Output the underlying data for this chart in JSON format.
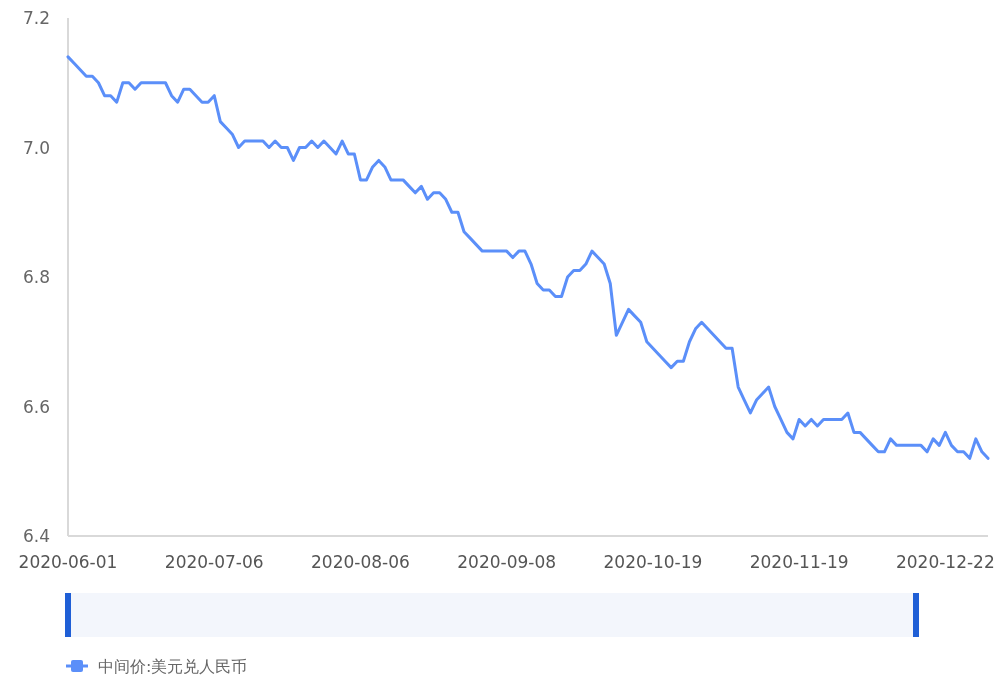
{
  "chart_data": {
    "type": "line",
    "categories": [
      "2020-06-01",
      null,
      null,
      null,
      null,
      null,
      null,
      null,
      null,
      null,
      null,
      null,
      null,
      null,
      null,
      null,
      null,
      null,
      null,
      null,
      null,
      null,
      null,
      null,
      "2020-07-06",
      null,
      null,
      null,
      null,
      null,
      null,
      null,
      null,
      null,
      null,
      null,
      null,
      null,
      null,
      null,
      null,
      null,
      null,
      null,
      null,
      null,
      null,
      null,
      "2020-08-06",
      null,
      null,
      null,
      null,
      null,
      null,
      null,
      null,
      null,
      null,
      null,
      null,
      null,
      null,
      null,
      null,
      null,
      null,
      null,
      null,
      null,
      null,
      null,
      "2020-09-08",
      null,
      null,
      null,
      null,
      null,
      null,
      null,
      null,
      null,
      null,
      null,
      null,
      null,
      null,
      null,
      null,
      null,
      null,
      null,
      null,
      null,
      null,
      null,
      "2020-10-19",
      null,
      null,
      null,
      null,
      null,
      null,
      null,
      null,
      null,
      null,
      null,
      null,
      null,
      null,
      null,
      null,
      null,
      null,
      null,
      null,
      null,
      null,
      null,
      "2020-11-19",
      null,
      null,
      null,
      null,
      null,
      null,
      null,
      null,
      null,
      null,
      null,
      null,
      null,
      null,
      null,
      null,
      null,
      null,
      null,
      null,
      null,
      null,
      null,
      "2020-12-22",
      null,
      null,
      null,
      null,
      null,
      null,
      null
    ],
    "series": [
      {
        "name": "中间价:美元兑人民币",
        "color": "#5b8ff9",
        "values": [
          7.14,
          7.13,
          7.12,
          7.11,
          7.11,
          7.1,
          7.08,
          7.08,
          7.07,
          7.1,
          7.1,
          7.09,
          7.1,
          7.1,
          7.1,
          7.1,
          7.1,
          7.08,
          7.07,
          7.09,
          7.09,
          7.08,
          7.07,
          7.07,
          7.08,
          7.04,
          7.03,
          7.02,
          7.0,
          7.01,
          7.01,
          7.01,
          7.01,
          7.0,
          7.01,
          7.0,
          7.0,
          6.98,
          7.0,
          7.0,
          7.01,
          7.0,
          7.01,
          7.0,
          6.99,
          7.01,
          6.99,
          6.99,
          6.95,
          6.95,
          6.97,
          6.98,
          6.97,
          6.95,
          6.95,
          6.95,
          6.94,
          6.93,
          6.94,
          6.92,
          6.93,
          6.93,
          6.92,
          6.9,
          6.9,
          6.87,
          6.86,
          6.85,
          6.84,
          6.84,
          6.84,
          6.84,
          6.84,
          6.83,
          6.84,
          6.84,
          6.82,
          6.79,
          6.78,
          6.78,
          6.77,
          6.77,
          6.8,
          6.81,
          6.81,
          6.82,
          6.84,
          6.83,
          6.82,
          6.79,
          6.71,
          6.73,
          6.75,
          6.74,
          6.73,
          6.7,
          6.69,
          6.68,
          6.67,
          6.66,
          6.67,
          6.67,
          6.7,
          6.72,
          6.73,
          6.72,
          6.71,
          6.7,
          6.69,
          6.69,
          6.63,
          6.61,
          6.59,
          6.61,
          6.62,
          6.63,
          6.6,
          6.58,
          6.56,
          6.55,
          6.58,
          6.57,
          6.58,
          6.57,
          6.58,
          6.58,
          6.58,
          6.58,
          6.59,
          6.56,
          6.56,
          6.55,
          6.54,
          6.53,
          6.53,
          6.55,
          6.54,
          6.54,
          6.54,
          6.54,
          6.54,
          6.53,
          6.55,
          6.54,
          6.56,
          6.54,
          6.53,
          6.53,
          6.52,
          6.55,
          6.53,
          6.52
        ]
      }
    ],
    "ylim": [
      6.4,
      7.2
    ],
    "yticks": [
      6.4,
      6.6,
      6.8,
      {
        "value": 7,
        "label": "7.0"
      },
      7.2
    ],
    "legend": "bottom left"
  }
}
